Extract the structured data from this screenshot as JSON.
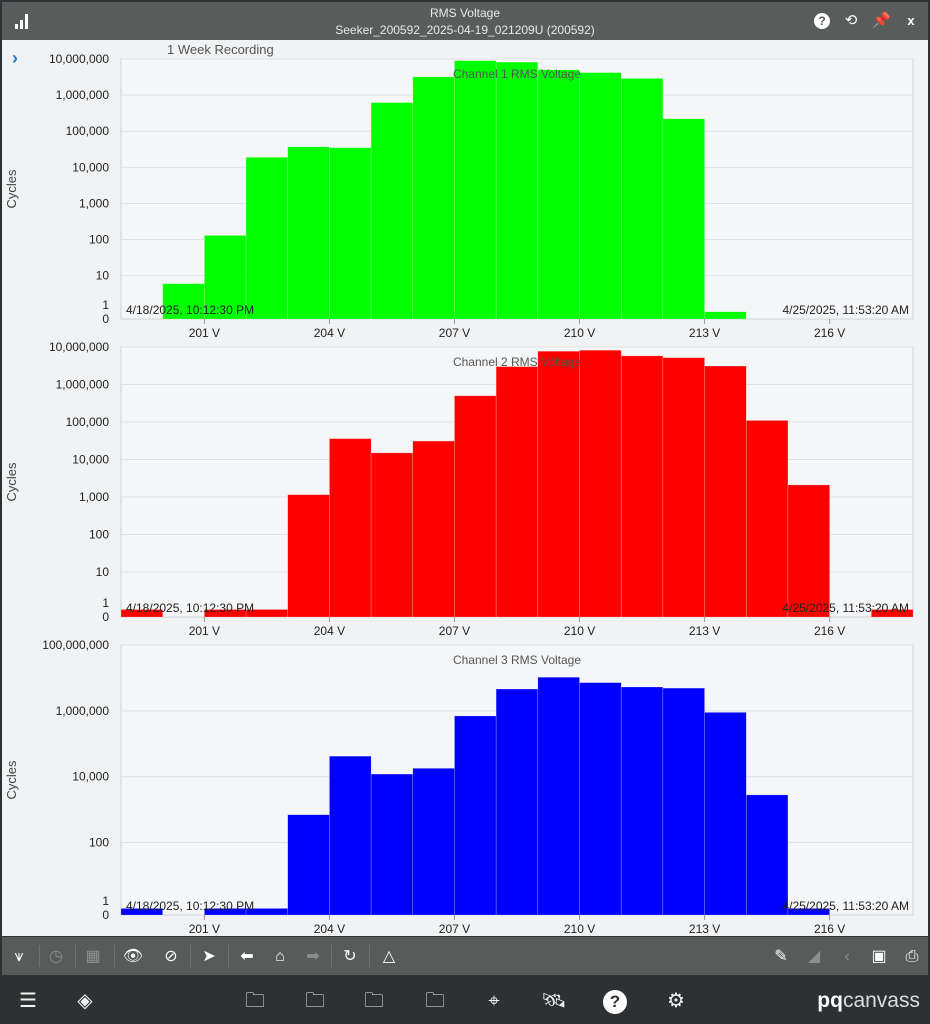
{
  "header": {
    "title": "RMS Voltage",
    "subtitle": "Seeker_200592_2025-04-19_021209U (200592)",
    "icons": [
      "bar-chart-icon",
      "help-icon",
      "history-icon",
      "pin-icon",
      "close-icon"
    ],
    "close_label": "x"
  },
  "recording_label": "1 Week Recording",
  "colors": {
    "header": "#585d5c",
    "toolbar": "#575c5b",
    "nav": "#2e3133",
    "expand": "#1a7fd4"
  },
  "chart_data": [
    {
      "type": "bar",
      "title": "Channel 1 RMS Voltage",
      "ylabel": "Cycles",
      "yscale": "log",
      "color": "#00ff00",
      "xlim": [
        199,
        218
      ],
      "xticks": [
        201,
        204,
        207,
        210,
        213,
        216
      ],
      "xtick_labels": [
        "201 V",
        "204 V",
        "207 V",
        "210 V",
        "213 V",
        "216 V"
      ],
      "yticks": [
        0,
        1,
        10,
        100,
        1000,
        10000,
        100000,
        1000000,
        10000000
      ],
      "ytick_labels": [
        "0",
        "1",
        "10",
        "100",
        "1,000",
        "10,000",
        "100,000",
        "1,000,000",
        "10,000,000"
      ],
      "ymax": 10000000,
      "bins": [
        199,
        200,
        201,
        202,
        203,
        204,
        205,
        206,
        207,
        208,
        209,
        210,
        211,
        212,
        213,
        214,
        215,
        216,
        217
      ],
      "values": [
        0,
        6,
        130,
        19000,
        37000,
        35000,
        620000,
        3200000,
        9000000,
        8200000,
        5000000,
        4200000,
        2900000,
        220000,
        1,
        0,
        0,
        0,
        0
      ],
      "start_label": "4/18/2025, 10:12:30 PM",
      "end_label": "4/25/2025, 11:53:20 AM",
      "grid": true
    },
    {
      "type": "bar",
      "title": "Channel 2 RMS Voltage",
      "ylabel": "Cycles",
      "yscale": "log",
      "color": "#ff0000",
      "xlim": [
        199,
        218
      ],
      "xticks": [
        201,
        204,
        207,
        210,
        213,
        216
      ],
      "xtick_labels": [
        "201 V",
        "204 V",
        "207 V",
        "210 V",
        "213 V",
        "216 V"
      ],
      "yticks": [
        0,
        1,
        10,
        100,
        1000,
        10000,
        100000,
        1000000,
        10000000
      ],
      "ytick_labels": [
        "0",
        "1",
        "10",
        "100",
        "1,000",
        "10,000",
        "100,000",
        "1,000,000",
        "10,000,000"
      ],
      "ymax": 10000000,
      "bins": [
        199,
        200,
        201,
        202,
        203,
        204,
        205,
        206,
        207,
        208,
        209,
        210,
        211,
        212,
        213,
        214,
        215,
        216,
        217
      ],
      "values": [
        1,
        0,
        1,
        1,
        1150,
        36000,
        15000,
        31000,
        500000,
        3000000,
        7700000,
        8200000,
        5800000,
        5200000,
        3100000,
        110000,
        2100,
        0,
        1
      ],
      "start_label": "4/18/2025, 10:12:30 PM",
      "end_label": "4/25/2025, 11:53:20 AM",
      "grid": true
    },
    {
      "type": "bar",
      "title": "Channel 3 RMS Voltage",
      "ylabel": "Cycles",
      "yscale": "log",
      "color": "#0000ff",
      "xlim": [
        199,
        218
      ],
      "xticks": [
        201,
        204,
        207,
        210,
        213,
        216
      ],
      "xtick_labels": [
        "201 V",
        "204 V",
        "207 V",
        "210 V",
        "213 V",
        "216 V"
      ],
      "yticks": [
        0,
        1,
        100,
        10000,
        1000000,
        100000000
      ],
      "ytick_labels": [
        "0",
        "1",
        "100",
        "10,000",
        "1,000,000",
        "100,000,000"
      ],
      "ymax": 100000000,
      "bins": [
        199,
        200,
        201,
        202,
        203,
        204,
        205,
        206,
        207,
        208,
        209,
        210,
        211,
        212,
        213,
        214,
        215,
        216,
        217
      ],
      "values": [
        1,
        0,
        1,
        1,
        700,
        42000,
        12000,
        18000,
        700000,
        4600000,
        10500000,
        7200000,
        5300000,
        4900000,
        900000,
        2800,
        1,
        0,
        0
      ],
      "start_label": "4/18/2025, 10:12:30 PM",
      "end_label": "4/25/2025, 11:53:20 AM",
      "grid": true
    }
  ],
  "toolbar": {
    "left": [
      "add-trend-icon",
      "clock-icon",
      "table-icon",
      "show-annotations-icon",
      "hide-icon",
      "pointer-icon",
      "back-icon",
      "home-icon",
      "forward-icon",
      "refresh-icon",
      "delta-icon"
    ],
    "right": [
      "pencil-icon",
      "add-marker-icon",
      "share-icon",
      "save-icon",
      "print-icon"
    ]
  },
  "nav": {
    "icons": [
      "menu-icon",
      "layers-icon",
      "events-folder-icon",
      "recordings-folder-icon",
      "trends-folder-icon",
      "reports-folder-icon",
      "location-icon",
      "satellite-icon",
      "help-icon",
      "settings-icon"
    ],
    "brand_bold": "pq",
    "brand_rest": "canvass"
  }
}
